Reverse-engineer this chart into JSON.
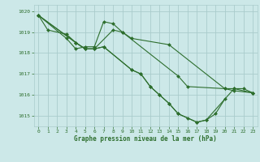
{
  "background_color": "#cce8e8",
  "grid_color": "#aacccc",
  "line_color": "#2d6e2d",
  "marker_color": "#2d6e2d",
  "xlabel": "Graphe pression niveau de la mer (hPa)",
  "ylim": [
    1014.5,
    1020.3
  ],
  "xlim": [
    -0.5,
    23.5
  ],
  "yticks": [
    1015,
    1016,
    1017,
    1018,
    1019,
    1020
  ],
  "xticks": [
    0,
    1,
    2,
    3,
    4,
    5,
    6,
    7,
    8,
    9,
    10,
    11,
    12,
    13,
    14,
    15,
    16,
    17,
    18,
    19,
    20,
    21,
    22,
    23
  ],
  "series": [
    {
      "x": [
        0,
        1,
        3,
        4,
        5,
        6,
        8,
        9,
        10,
        14,
        20,
        21,
        23
      ],
      "y": [
        1019.8,
        1019.1,
        1018.9,
        1018.5,
        1018.2,
        1018.2,
        1019.1,
        1019.0,
        1018.7,
        1018.4,
        1016.3,
        1016.2,
        1016.1
      ]
    },
    {
      "x": [
        0,
        3,
        4,
        5,
        6,
        7,
        8,
        9,
        15,
        16,
        20,
        21,
        23
      ],
      "y": [
        1019.8,
        1018.7,
        1018.2,
        1018.3,
        1018.3,
        1019.5,
        1019.4,
        1019.0,
        1016.9,
        1016.4,
        1016.3,
        1016.3,
        1016.1
      ]
    },
    {
      "x": [
        0,
        4,
        5,
        6,
        7,
        10,
        11,
        12,
        13,
        14,
        15,
        17,
        18,
        19,
        20
      ],
      "y": [
        1019.8,
        1018.5,
        1018.2,
        1018.2,
        1018.3,
        1017.2,
        1017.0,
        1016.4,
        1016.0,
        1015.6,
        1015.1,
        1014.7,
        1014.8,
        1015.1,
        1015.8
      ]
    },
    {
      "x": [
        0,
        4,
        5,
        6,
        7,
        10,
        11,
        12,
        13,
        14,
        15,
        16,
        17,
        18,
        21,
        22,
        23
      ],
      "y": [
        1019.8,
        1018.5,
        1018.2,
        1018.2,
        1018.3,
        1017.2,
        1017.0,
        1016.4,
        1016.0,
        1015.6,
        1015.1,
        1014.9,
        1014.7,
        1014.8,
        1016.3,
        1016.3,
        1016.1
      ]
    }
  ]
}
